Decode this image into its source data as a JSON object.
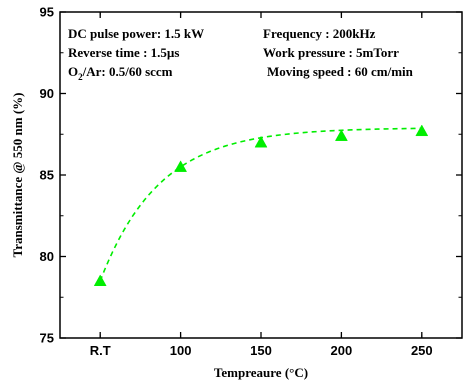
{
  "chart_data": {
    "type": "scatter",
    "title": "",
    "xlabel": "Tempreaure (°C)",
    "ylabel": "Transmittance @ 550 nm (%)",
    "categories": [
      "R.T",
      "100",
      "150",
      "200",
      "250"
    ],
    "x": [
      50,
      100,
      150,
      200,
      250
    ],
    "xlim": [
      25,
      275
    ],
    "ylim": [
      75,
      95
    ],
    "yticks": [
      "75",
      "80",
      "85",
      "90",
      "95"
    ],
    "grid": false,
    "series": [
      {
        "values": [
          78.5,
          85.5,
          87.0,
          87.4,
          87.7
        ],
        "marker": "triangle",
        "color": "#00ee00",
        "fit_line": "dashed"
      }
    ],
    "annotations": {
      "left": [
        "DC pulse power: 1.5 kW",
        "Reverse time : 1.5µs",
        "O2/Ar: 0.5/60 sccm"
      ],
      "right": [
        "Frequency : 200kHz",
        "Work pressure : 5mTorr",
        "Moving speed : 60 cm/min"
      ]
    }
  }
}
